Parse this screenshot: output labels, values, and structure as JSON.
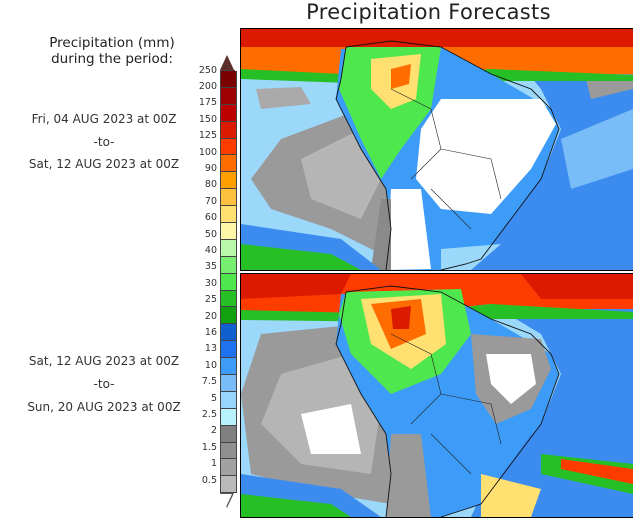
{
  "title": "Precipitation Forecasts",
  "legend": {
    "title_line1": "Precipitation (mm)",
    "title_line2": "during the period:",
    "labels": [
      "250",
      "200",
      "175",
      "150",
      "125",
      "100",
      "90",
      "80",
      "70",
      "60",
      "50",
      "40",
      "35",
      "30",
      "25",
      "20",
      "16",
      "13",
      "10",
      "7.5",
      "5",
      "2.5",
      "2",
      "1.5",
      "1",
      "0.5"
    ],
    "colors": [
      "#7a0000",
      "#9c0000",
      "#bd0000",
      "#dc1a00",
      "#ff3c00",
      "#ff6c00",
      "#ffa000",
      "#ffc040",
      "#ffe070",
      "#fff6a8",
      "#b8f8a8",
      "#78ee70",
      "#4ee84e",
      "#26c026",
      "#10a010",
      "#1060d0",
      "#1e72f0",
      "#3c9cf8",
      "#78bcf8",
      "#98d4fc",
      "#b8f2fc",
      "#808080",
      "#909090",
      "#a2a2a2",
      "#bababa"
    ],
    "over_color": "#5a2e2a",
    "under_color": "#ffffff"
  },
  "periods": [
    {
      "start": "Fri, 04 AUG 2023 at 00Z",
      "sep": "-to-",
      "end": "Sat, 12 AUG 2023 at 00Z"
    },
    {
      "start": "Sat, 12 AUG 2023 at 00Z",
      "sep": "-to-",
      "end": "Sun, 20 AUG 2023 at 00Z"
    }
  ]
}
